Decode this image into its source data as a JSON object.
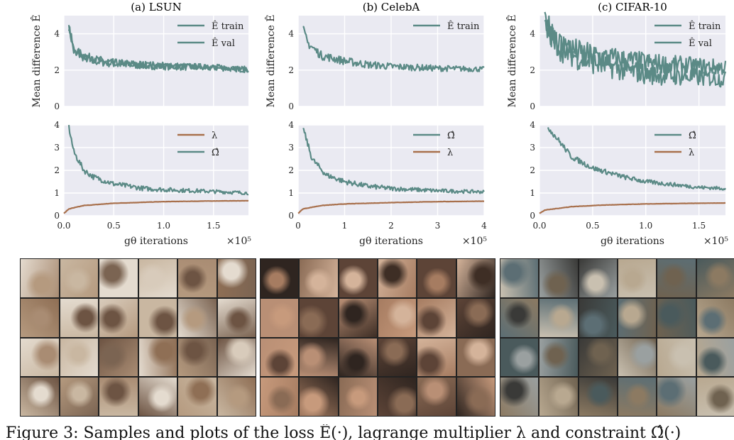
{
  "figure": {
    "caption": "Figure 3: Samples and plots of the loss Ê(·), lagrange multiplier λ and constraint Ω̂(·)",
    "colors": {
      "teal": "#5b8a86",
      "brown": "#a8704c",
      "grid": "#e8e8ee"
    },
    "xlabel": "gθ iterations",
    "x_multiplier": "×10⁵",
    "top_ylabel": "Mean difference Ê",
    "panels": [
      {
        "title": "(a) LSUN",
        "x_ticks": [
          "0.0",
          "0.5",
          "1.0",
          "1.5"
        ],
        "top_yticks": [
          "0",
          "2",
          "4"
        ],
        "bottom_yticks": [
          "0",
          "1",
          "2",
          "3",
          "4"
        ],
        "top_legend": [
          "Ê train",
          "Ê val"
        ],
        "bottom_legend": [
          "λ",
          "Ω̂"
        ],
        "image_grid": "LSUN bedroom samples 4x6"
      },
      {
        "title": "(b) CelebA",
        "x_ticks": [
          "0",
          "1",
          "2",
          "3",
          "4"
        ],
        "top_yticks": [
          "0",
          "2",
          "4"
        ],
        "bottom_yticks": [
          "0",
          "1",
          "2",
          "3",
          "4"
        ],
        "top_legend": [
          "Ê train"
        ],
        "bottom_legend": [
          "Ω̂",
          "λ"
        ],
        "image_grid": "CelebA face samples 4x6"
      },
      {
        "title": "(c) CIFAR-10",
        "x_ticks": [
          "0.0",
          "0.5",
          "1.0",
          "1.5"
        ],
        "top_yticks": [
          "0",
          "2",
          "4"
        ],
        "bottom_yticks": [
          "0",
          "1",
          "2",
          "3",
          "4"
        ],
        "top_legend": [
          "Ê train",
          "Ê val"
        ],
        "bottom_legend": [
          "Ω̂",
          "λ"
        ],
        "image_grid": "CIFAR-10 samples 4x6"
      }
    ]
  },
  "chart_data": [
    {
      "type": "line",
      "title": "(a) LSUN",
      "ylabel": "Mean difference Ê",
      "xlim": [
        0,
        1.85
      ],
      "ylim": [
        0,
        5
      ],
      "series": [
        {
          "name": "Ê train",
          "x": [
            0.05,
            0.1,
            0.2,
            0.3,
            0.5,
            0.8,
            1.0,
            1.3,
            1.6,
            1.85
          ],
          "y": [
            4.4,
            3.0,
            2.7,
            2.5,
            2.35,
            2.25,
            2.2,
            2.15,
            2.1,
            2.0
          ]
        },
        {
          "name": "Ê val",
          "x": [
            0.05,
            0.1,
            0.2,
            0.3,
            0.5,
            0.8,
            1.0,
            1.3,
            1.6,
            1.85
          ],
          "y": [
            4.4,
            3.1,
            2.8,
            2.6,
            2.4,
            2.3,
            2.25,
            2.2,
            2.15,
            2.05
          ]
        }
      ]
    },
    {
      "type": "line",
      "title": "(a) LSUN",
      "xlabel": "gθ iterations",
      "xlim": [
        0,
        1.85
      ],
      "ylim": [
        0,
        4
      ],
      "series": [
        {
          "name": "λ",
          "x": [
            0,
            0.05,
            0.2,
            0.5,
            1.0,
            1.5,
            1.85
          ],
          "y": [
            0.1,
            0.3,
            0.45,
            0.55,
            0.62,
            0.65,
            0.66
          ]
        },
        {
          "name": "Ω̂",
          "x": [
            0.05,
            0.1,
            0.2,
            0.3,
            0.5,
            0.8,
            1.0,
            1.3,
            1.6,
            1.85
          ],
          "y": [
            3.9,
            2.8,
            2.0,
            1.7,
            1.4,
            1.2,
            1.15,
            1.1,
            1.05,
            1.0
          ]
        }
      ]
    },
    {
      "type": "line",
      "title": "(b) CelebA",
      "ylabel": "Mean difference Ê",
      "xlim": [
        0,
        4
      ],
      "ylim": [
        0,
        5
      ],
      "series": [
        {
          "name": "Ê train",
          "x": [
            0.1,
            0.2,
            0.5,
            1,
            1.5,
            2,
            3,
            4
          ],
          "y": [
            4.3,
            3.5,
            2.8,
            2.5,
            2.3,
            2.2,
            2.1,
            2.05
          ]
        }
      ]
    },
    {
      "type": "line",
      "title": "(b) CelebA",
      "xlabel": "gθ iterations",
      "xlim": [
        0,
        4
      ],
      "ylim": [
        0,
        4
      ],
      "series": [
        {
          "name": "Ω̂",
          "x": [
            0.1,
            0.3,
            0.6,
            1,
            1.5,
            2,
            3,
            4
          ],
          "y": [
            3.9,
            2.5,
            1.8,
            1.5,
            1.3,
            1.2,
            1.1,
            1.05
          ]
        },
        {
          "name": "λ",
          "x": [
            0,
            0.1,
            0.5,
            1,
            2,
            3,
            4
          ],
          "y": [
            0.1,
            0.3,
            0.45,
            0.52,
            0.58,
            0.62,
            0.64
          ]
        }
      ]
    },
    {
      "type": "line",
      "title": "(c) CIFAR-10",
      "ylabel": "Mean difference Ê",
      "xlim": [
        0,
        1.75
      ],
      "ylim": [
        0,
        5
      ],
      "series": [
        {
          "name": "Ê train",
          "x": [
            0.05,
            0.2,
            0.4,
            0.6,
            0.8,
            1.0,
            1.2,
            1.5,
            1.75
          ],
          "y": [
            4.6,
            3.4,
            2.9,
            2.7,
            2.55,
            2.4,
            2.3,
            2.2,
            2.15
          ]
        },
        {
          "name": "Ê val",
          "x": [
            0.05,
            0.2,
            0.4,
            0.6,
            0.8,
            1.0,
            1.2,
            1.5,
            1.75
          ],
          "y": [
            4.4,
            3.2,
            2.6,
            2.3,
            2.0,
            1.8,
            1.7,
            1.6,
            1.5
          ]
        }
      ]
    },
    {
      "type": "line",
      "title": "(c) CIFAR-10",
      "xlabel": "gθ iterations",
      "xlim": [
        0,
        1.75
      ],
      "ylim": [
        0,
        4
      ],
      "series": [
        {
          "name": "Ω̂",
          "x": [
            0.08,
            0.2,
            0.3,
            0.5,
            0.8,
            1.0,
            1.3,
            1.5,
            1.75
          ],
          "y": [
            3.9,
            3.2,
            2.6,
            2.1,
            1.7,
            1.5,
            1.35,
            1.25,
            1.2
          ]
        },
        {
          "name": "λ",
          "x": [
            0,
            0.05,
            0.3,
            0.6,
            1.0,
            1.5,
            1.75
          ],
          "y": [
            0.1,
            0.25,
            0.4,
            0.47,
            0.52,
            0.55,
            0.56
          ]
        }
      ]
    }
  ]
}
